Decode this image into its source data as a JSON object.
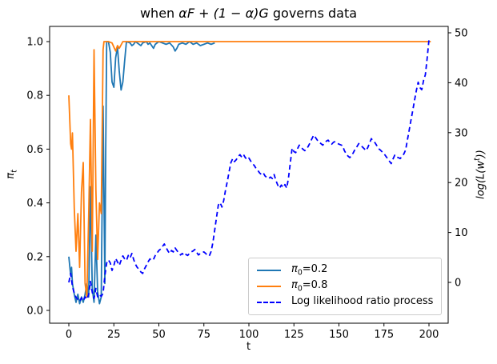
{
  "figure": {
    "title": {
      "pre": "when ",
      "math": "αF + (1 − α)G",
      "post": " governs data"
    },
    "x_axis": {
      "label": "t"
    },
    "y_left_axis": {
      "label_base": "π",
      "label_sub": "t"
    },
    "y_right_axis": {
      "label_pre": "log(L(w",
      "label_sup": "t",
      "label_post": "))"
    },
    "legend": {
      "items": [
        {
          "base": "π",
          "sub": "0",
          "rest": "=0.2"
        },
        {
          "base": "π",
          "sub": "0",
          "rest": "=0.8"
        },
        {
          "base": "Log likelihood ratio process",
          "sub": "",
          "rest": ""
        }
      ]
    }
  },
  "chart_data": {
    "type": "line",
    "title": "when αF + (1 − α)G governs data",
    "xlabel": "t",
    "ylabel_left": "π_t",
    "ylabel_right": "log(L(w^t))",
    "grid": false,
    "legend_position": "lower right",
    "x_ticks": {
      "values": [
        0,
        25,
        50,
        75,
        100,
        125,
        150,
        175,
        200
      ],
      "labels": [
        "0",
        "25",
        "50",
        "75",
        "100",
        "125",
        "150",
        "175",
        "200"
      ]
    },
    "y_left_ticks": {
      "values": [
        0.0,
        0.2,
        0.4,
        0.6,
        0.8,
        1.0
      ],
      "labels": [
        "0.0",
        "0.2",
        "0.4",
        "0.6",
        "0.8",
        "1.0"
      ]
    },
    "y_right_ticks": {
      "values": [
        0,
        10,
        20,
        30,
        40,
        50
      ],
      "labels": [
        "0",
        "10",
        "20",
        "30",
        "40",
        "50"
      ]
    },
    "xlim": [
      -10,
      211
    ],
    "ylim_left": [
      -0.07,
      1.07
    ],
    "ylim_right": [
      -8.6,
      51.3
    ],
    "series": [
      {
        "id": "pi02",
        "name": "π0=0.2",
        "axis": "left",
        "color": "#1f77b4",
        "style": "solid",
        "points": [
          [
            0,
            0.2
          ],
          [
            1,
            0.13
          ],
          [
            1.5,
            0.16
          ],
          [
            2,
            0.1
          ],
          [
            3,
            0.06
          ],
          [
            4,
            0.03
          ],
          [
            5,
            0.06
          ],
          [
            6,
            0.025
          ],
          [
            7,
            0.05
          ],
          [
            8,
            0.03
          ],
          [
            9,
            0.06
          ],
          [
            10,
            0.1
          ],
          [
            11,
            0.05
          ],
          [
            12,
            0.46
          ],
          [
            13,
            0.08
          ],
          [
            14,
            0.03
          ],
          [
            15,
            0.28
          ],
          [
            16,
            0.07
          ],
          [
            17,
            0.025
          ],
          [
            18,
            0.05
          ],
          [
            19,
            0.76
          ],
          [
            20,
            0.1
          ],
          [
            20.5,
            0.6
          ],
          [
            21,
            1.0
          ],
          [
            22,
            1.0
          ],
          [
            23,
            0.96
          ],
          [
            24,
            0.85
          ],
          [
            25,
            0.83
          ],
          [
            26,
            0.94
          ],
          [
            27,
            0.98
          ],
          [
            28,
            0.89
          ],
          [
            29,
            0.82
          ],
          [
            30,
            0.85
          ],
          [
            31,
            0.93
          ],
          [
            32,
            1.0
          ],
          [
            34,
            0.995
          ],
          [
            35,
            0.985
          ],
          [
            36,
            0.99
          ],
          [
            37,
            1.0
          ],
          [
            39,
            0.99
          ],
          [
            40,
            0.985
          ],
          [
            41,
            0.995
          ],
          [
            43,
            1.0
          ],
          [
            44,
            0.99
          ],
          [
            45,
            0.995
          ],
          [
            47,
            0.975
          ],
          [
            48,
            0.99
          ],
          [
            50,
            1.0
          ],
          [
            52,
            0.995
          ],
          [
            54,
            0.99
          ],
          [
            56,
            0.995
          ],
          [
            58,
            0.98
          ],
          [
            59,
            0.965
          ],
          [
            60,
            0.975
          ],
          [
            61,
            0.99
          ],
          [
            63,
            0.995
          ],
          [
            65,
            0.99
          ],
          [
            67,
            1.0
          ],
          [
            69,
            0.99
          ],
          [
            71,
            0.995
          ],
          [
            73,
            0.985
          ],
          [
            75,
            0.99
          ],
          [
            77,
            0.995
          ],
          [
            79,
            0.99
          ],
          [
            81,
            0.995
          ]
        ]
      },
      {
        "id": "pi08",
        "name": "π0=0.8",
        "axis": "left",
        "color": "#ff7f0e",
        "style": "solid",
        "points": [
          [
            0,
            0.8
          ],
          [
            1,
            0.62
          ],
          [
            1.5,
            0.6
          ],
          [
            2,
            0.66
          ],
          [
            3,
            0.38
          ],
          [
            4,
            0.22
          ],
          [
            5,
            0.36
          ],
          [
            6,
            0.16
          ],
          [
            7,
            0.44
          ],
          [
            8,
            0.55
          ],
          [
            9,
            0.1
          ],
          [
            10,
            0.05
          ],
          [
            11,
            0.35
          ],
          [
            12,
            0.71
          ],
          [
            13,
            0.22
          ],
          [
            14,
            0.97
          ],
          [
            15,
            0.45
          ],
          [
            16,
            0.19
          ],
          [
            17,
            0.4
          ],
          [
            18,
            0.36
          ],
          [
            19,
            0.97
          ],
          [
            19.5,
            1.0
          ],
          [
            22,
            1.0
          ],
          [
            24,
            0.995
          ],
          [
            26,
            0.965
          ],
          [
            27,
            0.985
          ],
          [
            28,
            0.975
          ],
          [
            30,
            1.0
          ],
          [
            50,
            1.0
          ],
          [
            100,
            1.0
          ],
          [
            150,
            1.0
          ],
          [
            201,
            1.0
          ]
        ]
      },
      {
        "id": "llr",
        "name": "Log likelihood ratio process",
        "axis": "right",
        "color": "#0000ff",
        "style": "dashed",
        "points": [
          [
            0,
            0.0
          ],
          [
            1,
            1.8
          ],
          [
            2,
            -0.8
          ],
          [
            3,
            -2.2
          ],
          [
            4,
            -3.0
          ],
          [
            5,
            -3.4
          ],
          [
            6,
            -3.8
          ],
          [
            7,
            -3.1
          ],
          [
            8,
            -3.7
          ],
          [
            9,
            -2.9
          ],
          [
            10,
            -3.4
          ],
          [
            11,
            -2.4
          ],
          [
            12,
            0.2
          ],
          [
            13,
            -2.0
          ],
          [
            14,
            -3.2
          ],
          [
            15,
            -1.2
          ],
          [
            16,
            -2.9
          ],
          [
            17,
            -2.5
          ],
          [
            18,
            -2.8
          ],
          [
            19,
            -2.2
          ],
          [
            20,
            1.3
          ],
          [
            21,
            3.9
          ],
          [
            22,
            4.5
          ],
          [
            23,
            3.9
          ],
          [
            24,
            2.4
          ],
          [
            25,
            3.4
          ],
          [
            26,
            4.8
          ],
          [
            27,
            4.1
          ],
          [
            28,
            3.4
          ],
          [
            29,
            4.4
          ],
          [
            30,
            5.3
          ],
          [
            31,
            4.7
          ],
          [
            32,
            4.4
          ],
          [
            33,
            5.4
          ],
          [
            34,
            4.9
          ],
          [
            35,
            5.8
          ],
          [
            36,
            4.6
          ],
          [
            37,
            3.6
          ],
          [
            38,
            3.0
          ],
          [
            39,
            2.6
          ],
          [
            40,
            2.1
          ],
          [
            41,
            1.8
          ],
          [
            42,
            2.7
          ],
          [
            43,
            3.4
          ],
          [
            44,
            4.1
          ],
          [
            45,
            4.7
          ],
          [
            46,
            4.4
          ],
          [
            47,
            4.6
          ],
          [
            48,
            5.4
          ],
          [
            49,
            5.9
          ],
          [
            50,
            6.4
          ],
          [
            51,
            6.7
          ],
          [
            52,
            7.2
          ],
          [
            53,
            7.7
          ],
          [
            54,
            7.0
          ],
          [
            55,
            6.3
          ],
          [
            56,
            5.8
          ],
          [
            57,
            6.4
          ],
          [
            58,
            6.1
          ],
          [
            59,
            6.9
          ],
          [
            60,
            6.4
          ],
          [
            61,
            5.9
          ],
          [
            62,
            5.5
          ],
          [
            63,
            5.8
          ],
          [
            64,
            5.3
          ],
          [
            65,
            5.6
          ],
          [
            66,
            5.4
          ],
          [
            67,
            5.8
          ],
          [
            68,
            6.1
          ],
          [
            69,
            6.3
          ],
          [
            70,
            6.6
          ],
          [
            71,
            6.0
          ],
          [
            72,
            5.5
          ],
          [
            73,
            5.8
          ],
          [
            74,
            6.0
          ],
          [
            75,
            6.1
          ],
          [
            76,
            5.8
          ],
          [
            77,
            5.4
          ],
          [
            78,
            5.3
          ],
          [
            79,
            6.2
          ],
          [
            80,
            8.0
          ],
          [
            81,
            10.5
          ],
          [
            82,
            13.0
          ],
          [
            83,
            15.5
          ],
          [
            84,
            16.0
          ],
          [
            85,
            15.1
          ],
          [
            86,
            16.4
          ],
          [
            87,
            18.5
          ],
          [
            88,
            20.2
          ],
          [
            89,
            22.2
          ],
          [
            90,
            24.0
          ],
          [
            91,
            24.8
          ],
          [
            92,
            24.2
          ],
          [
            93,
            24.6
          ],
          [
            94,
            25.2
          ],
          [
            95,
            25.6
          ],
          [
            96,
            25.1
          ],
          [
            97,
            25.6
          ],
          [
            98,
            25.0
          ],
          [
            99,
            24.6
          ],
          [
            100,
            24.9
          ],
          [
            101,
            24.3
          ],
          [
            102,
            23.8
          ],
          [
            103,
            23.4
          ],
          [
            104,
            22.8
          ],
          [
            105,
            22.4
          ],
          [
            106,
            21.9
          ],
          [
            107,
            21.6
          ],
          [
            108,
            21.9
          ],
          [
            109,
            21.3
          ],
          [
            110,
            21.0
          ],
          [
            111,
            20.8
          ],
          [
            112,
            21.1
          ],
          [
            113,
            20.8
          ],
          [
            114,
            21.6
          ],
          [
            115,
            20.4
          ],
          [
            116,
            19.5
          ],
          [
            117,
            18.9
          ],
          [
            118,
            19.5
          ],
          [
            119,
            19.0
          ],
          [
            120,
            19.6
          ],
          [
            121,
            18.9
          ],
          [
            122,
            21.0
          ],
          [
            123,
            24.0
          ],
          [
            124,
            26.9
          ],
          [
            125,
            26.2
          ],
          [
            126,
            26.0
          ],
          [
            127,
            26.8
          ],
          [
            128,
            27.5
          ],
          [
            129,
            27.0
          ],
          [
            130,
            26.7
          ],
          [
            131,
            26.4
          ],
          [
            132,
            26.7
          ],
          [
            133,
            27.3
          ],
          [
            134,
            28.0
          ],
          [
            135,
            28.8
          ],
          [
            136,
            29.5
          ],
          [
            137,
            29.0
          ],
          [
            138,
            28.5
          ],
          [
            139,
            28.1
          ],
          [
            140,
            27.8
          ],
          [
            141,
            27.5
          ],
          [
            142,
            27.9
          ],
          [
            143,
            28.3
          ],
          [
            144,
            28.5
          ],
          [
            145,
            28.0
          ],
          [
            146,
            27.7
          ],
          [
            147,
            28.1
          ],
          [
            148,
            28.2
          ],
          [
            149,
            27.9
          ],
          [
            150,
            27.7
          ],
          [
            152,
            27.4
          ],
          [
            153,
            26.4
          ],
          [
            154,
            25.8
          ],
          [
            155,
            25.3
          ],
          [
            156,
            25.0
          ],
          [
            157,
            25.4
          ],
          [
            158,
            26.0
          ],
          [
            159,
            26.7
          ],
          [
            160,
            27.2
          ],
          [
            161,
            27.8
          ],
          [
            162,
            27.5
          ],
          [
            164,
            26.8
          ],
          [
            165,
            26.4
          ],
          [
            166,
            27.0
          ],
          [
            167,
            27.9
          ],
          [
            168,
            28.8
          ],
          [
            169,
            28.3
          ],
          [
            170,
            28.0
          ],
          [
            171,
            27.4
          ],
          [
            172,
            26.8
          ],
          [
            173,
            26.5
          ],
          [
            175,
            25.8
          ],
          [
            176,
            25.3
          ],
          [
            177,
            24.8
          ],
          [
            178,
            24.3
          ],
          [
            179,
            23.8
          ],
          [
            180,
            24.7
          ],
          [
            181,
            25.5
          ],
          [
            182,
            25.1
          ],
          [
            183,
            25.0
          ],
          [
            184,
            24.8
          ],
          [
            185,
            25.2
          ],
          [
            186,
            25.7
          ],
          [
            187,
            26.5
          ],
          [
            188,
            28.5
          ],
          [
            189,
            30.5
          ],
          [
            190,
            32.5
          ],
          [
            191,
            34.5
          ],
          [
            192,
            36.5
          ],
          [
            193,
            38.5
          ],
          [
            194,
            40.1
          ],
          [
            195,
            39.0
          ],
          [
            196,
            38.6
          ],
          [
            197,
            40.5
          ],
          [
            198,
            41.6
          ],
          [
            199,
            45.0
          ],
          [
            200,
            48.6
          ]
        ]
      }
    ]
  }
}
